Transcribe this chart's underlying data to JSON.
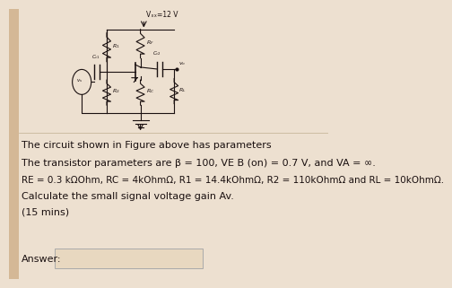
{
  "bg_color": "#ede0d0",
  "page_color": "#f0e6d6",
  "left_strip_color": "#d4b896",
  "text_color": "#1a1010",
  "line1": "The circuit shown in Figure above has parameters",
  "line2": "The transistor parameters are β = 100, VE B (on) = 0.7 V, and VA = ∞.",
  "line3": "RE = 0.3 kΩOhm, RC = 4kOhmΩ, R1 = 14.4kOhmΩ, R2 = 110kOhmΩ and RL = 10kOhmΩ.",
  "line4": "Calculate the small signal voltage gain Av.",
  "line5": "(15 mins)",
  "answer_label": "Answer:",
  "vcc_label": "Vₓₓ=12 V",
  "font_size": 8.0,
  "circuit_color": "#1a1010",
  "answer_box_color": "#e8d8c0",
  "answer_box_edge": "#aaaaaa",
  "divider_color": "#c0b090"
}
